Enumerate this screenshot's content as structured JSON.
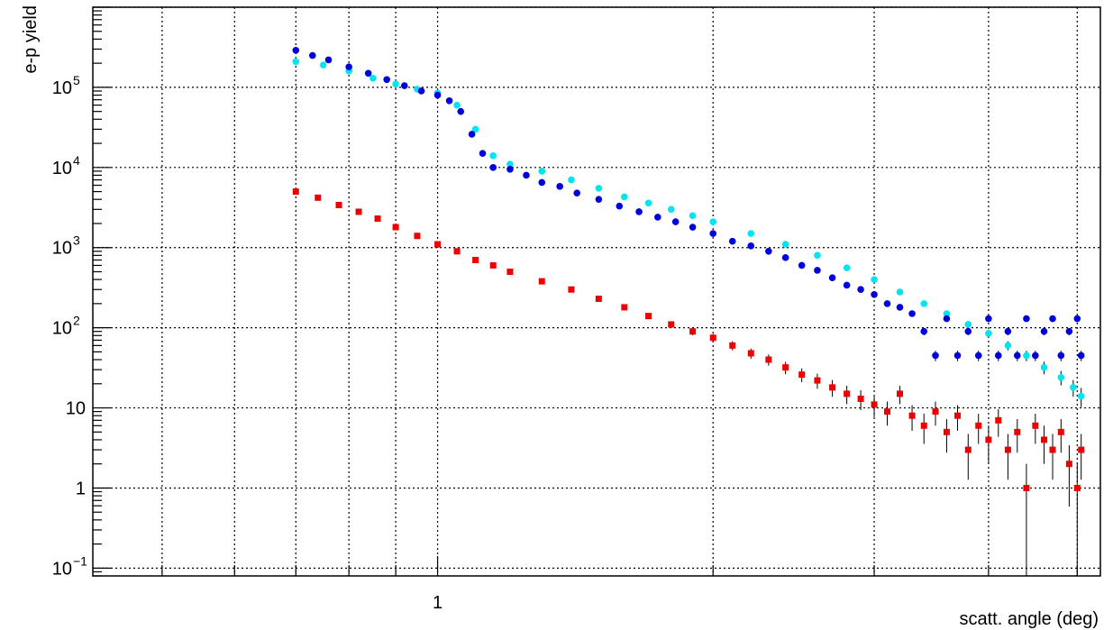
{
  "chart_data": {
    "type": "scatter",
    "xlabel": "scatt. angle (deg)",
    "ylabel": "e-p yield",
    "xscale": "log",
    "yscale": "log",
    "xlim": [
      0.42,
      5.3
    ],
    "ylim": [
      0.08,
      1000000
    ],
    "grid": true,
    "x_ticks": [
      {
        "value": 1,
        "label": "1"
      }
    ],
    "y_ticks": [
      {
        "value": 0.1,
        "base": "10",
        "exp": "−1"
      },
      {
        "value": 1,
        "base": "1",
        "exp": ""
      },
      {
        "value": 10,
        "base": "10",
        "exp": ""
      },
      {
        "value": 100,
        "base": "10",
        "exp": "2"
      },
      {
        "value": 1000,
        "base": "10",
        "exp": "3"
      },
      {
        "value": 10000,
        "base": "10",
        "exp": "4"
      },
      {
        "value": 100000,
        "base": "10",
        "exp": "5"
      }
    ],
    "series": [
      {
        "color": "#00e5ee",
        "marker": "circle",
        "x": [
          0.7,
          0.75,
          0.8,
          0.85,
          0.9,
          0.95,
          1.0,
          1.05,
          1.1,
          1.15,
          1.2,
          1.3,
          1.4,
          1.5,
          1.6,
          1.7,
          1.8,
          1.9,
          2.0,
          2.2,
          2.4,
          2.6,
          2.8,
          3.0,
          3.2,
          3.4,
          3.6,
          3.8,
          4.0,
          4.2,
          4.4,
          4.6,
          4.8,
          4.95,
          5.05
        ],
        "y": [
          210000,
          190000,
          160000,
          130000,
          110000,
          95000,
          85000,
          60000,
          30000,
          14000,
          11000,
          9000,
          7000,
          5500,
          4300,
          3600,
          3000,
          2500,
          2100,
          1500,
          1100,
          800,
          560,
          400,
          280,
          200,
          150,
          110,
          85,
          60,
          45,
          32,
          24,
          18,
          14
        ]
      },
      {
        "color": "#0000dd",
        "marker": "circle",
        "x": [
          0.7,
          0.73,
          0.76,
          0.8,
          0.84,
          0.88,
          0.92,
          0.96,
          1.0,
          1.03,
          1.06,
          1.09,
          1.12,
          1.15,
          1.2,
          1.25,
          1.3,
          1.36,
          1.42,
          1.5,
          1.58,
          1.66,
          1.74,
          1.82,
          1.9,
          2.0,
          2.1,
          2.2,
          2.3,
          2.4,
          2.5,
          2.6,
          2.7,
          2.8,
          2.9,
          3.0,
          3.1,
          3.2,
          3.3,
          3.4,
          3.5,
          3.6,
          3.7,
          3.8,
          3.9,
          4.0,
          4.1,
          4.2,
          4.3,
          4.4,
          4.5,
          4.6,
          4.7,
          4.8,
          4.9,
          5.0,
          5.05
        ],
        "y": [
          290000,
          250000,
          220000,
          180000,
          150000,
          125000,
          105000,
          90000,
          80000,
          68000,
          50000,
          26000,
          15000,
          10000,
          9500,
          8000,
          6500,
          5800,
          4800,
          4000,
          3300,
          2800,
          2400,
          2100,
          1800,
          1500,
          1200,
          1050,
          900,
          750,
          600,
          520,
          420,
          340,
          300,
          260,
          200,
          180,
          150,
          90,
          45,
          130,
          45,
          90,
          45,
          130,
          45,
          90,
          45,
          130,
          45,
          90,
          130,
          45,
          90,
          130,
          45
        ]
      },
      {
        "color": "#ee0000",
        "marker": "square",
        "x": [
          0.7,
          0.74,
          0.78,
          0.82,
          0.86,
          0.9,
          0.95,
          1.0,
          1.05,
          1.1,
          1.15,
          1.2,
          1.3,
          1.4,
          1.5,
          1.6,
          1.7,
          1.8,
          1.9,
          2.0,
          2.1,
          2.2,
          2.3,
          2.4,
          2.5,
          2.6,
          2.7,
          2.8,
          2.9,
          3.0,
          3.1,
          3.2,
          3.3,
          3.4,
          3.5,
          3.6,
          3.7,
          3.8,
          3.9,
          4.0,
          4.1,
          4.2,
          4.3,
          4.4,
          4.5,
          4.6,
          4.7,
          4.8,
          4.9,
          5.0,
          5.05
        ],
        "y": [
          5000,
          4200,
          3400,
          2800,
          2300,
          1800,
          1400,
          1100,
          900,
          700,
          600,
          500,
          380,
          300,
          230,
          180,
          140,
          110,
          90,
          75,
          60,
          48,
          40,
          32,
          26,
          22,
          18,
          15,
          13,
          11,
          9,
          15,
          8,
          6,
          9,
          5,
          8,
          3,
          6,
          4,
          7,
          3,
          5,
          1,
          6,
          4,
          3,
          5,
          2,
          1,
          3
        ]
      }
    ]
  }
}
